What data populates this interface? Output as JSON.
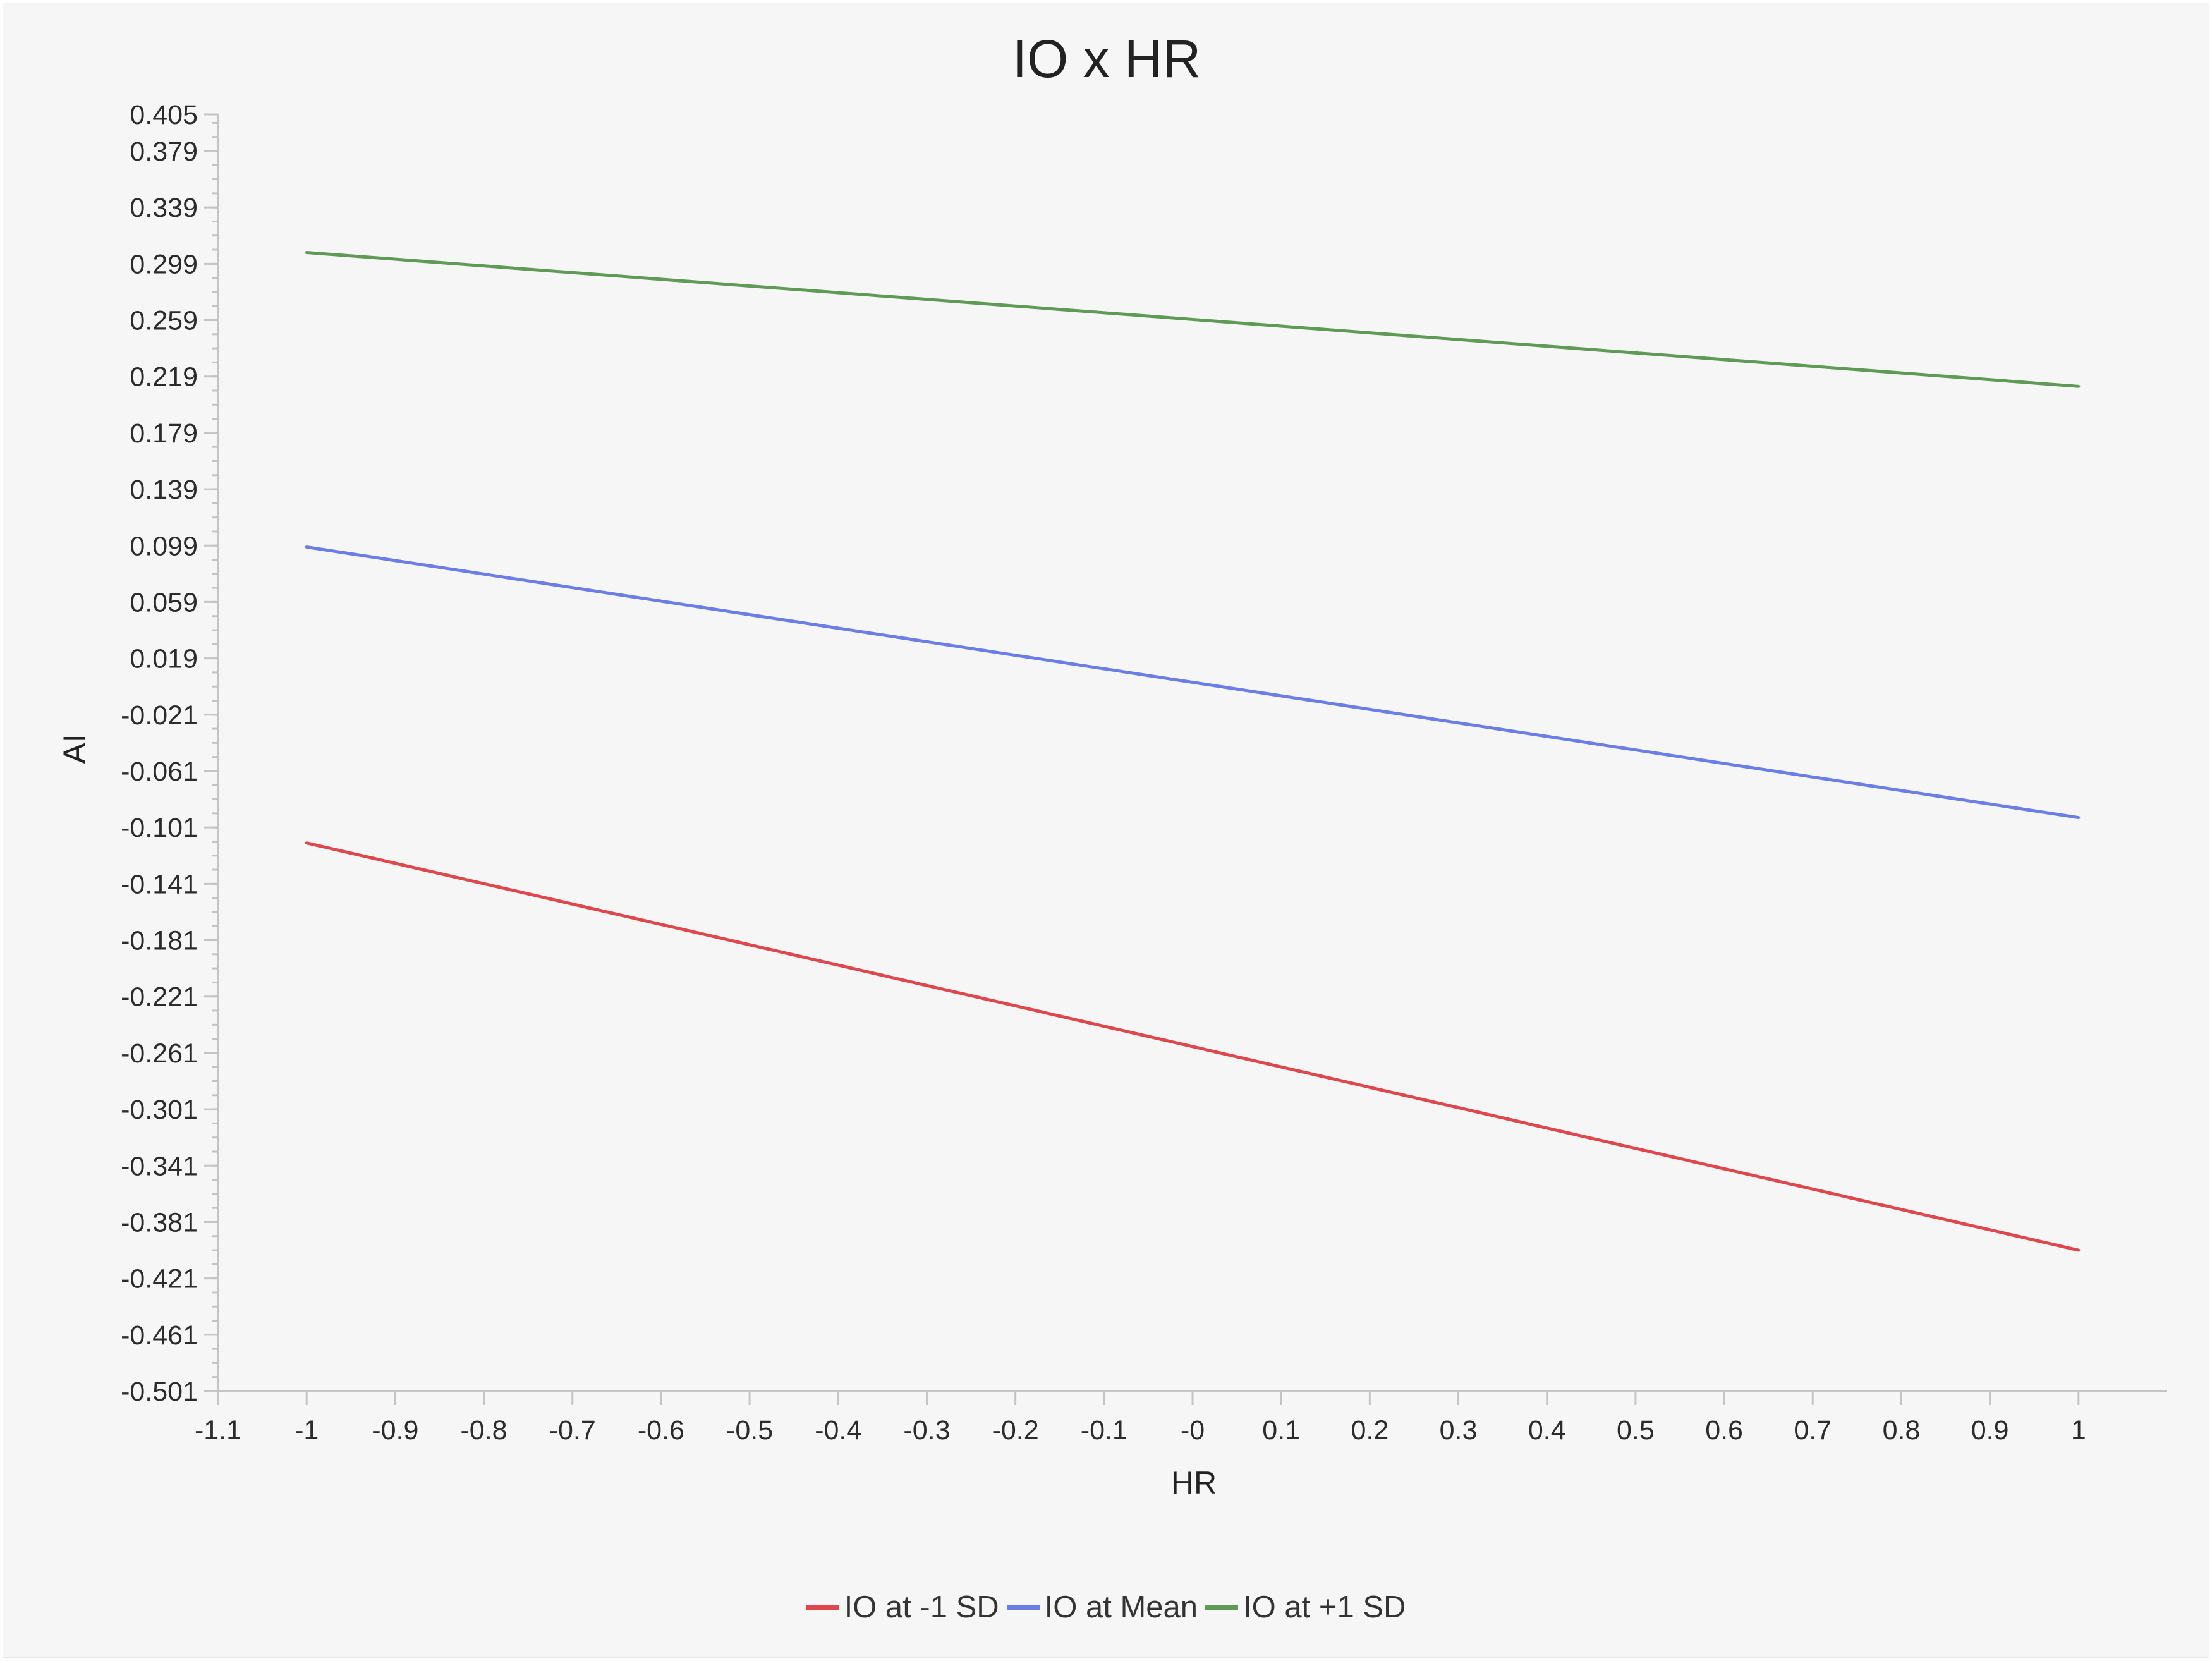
{
  "chart_data": {
    "type": "line",
    "title": "IO x HR",
    "xlabel": "HR",
    "ylabel": "AI",
    "xlim": [
      -1.1,
      1.1
    ],
    "ylim": [
      -0.501,
      0.405
    ],
    "x_ticks": [
      "-1.1",
      "-1",
      "-0.9",
      "-0.8",
      "-0.7",
      "-0.6",
      "-0.5",
      "-0.4",
      "-0.3",
      "-0.2",
      "-0.1",
      "-0",
      "0.1",
      "0.2",
      "0.3",
      "0.4",
      "0.5",
      "0.6",
      "0.7",
      "0.8",
      "0.9",
      "1"
    ],
    "y_ticks": [
      "0.405",
      "0.379",
      "0.339",
      "0.299",
      "0.259",
      "0.219",
      "0.179",
      "0.139",
      "0.099",
      "0.059",
      "0.019",
      "-0.021",
      "-0.061",
      "-0.101",
      "-0.141",
      "-0.181",
      "-0.221",
      "-0.261",
      "-0.301",
      "-0.341",
      "-0.381",
      "-0.421",
      "-0.461",
      "-0.501"
    ],
    "grid": false,
    "legend_position": "bottom",
    "series": [
      {
        "name": "IO at -1 SD",
        "color": "#e0474c",
        "x": [
          -1,
          1
        ],
        "y": [
          -0.112,
          -0.401
        ]
      },
      {
        "name": "IO at Mean",
        "color": "#6b7ee8",
        "x": [
          -1,
          1
        ],
        "y": [
          0.098,
          -0.094
        ]
      },
      {
        "name": "IO at +1 SD",
        "color": "#5f9a56",
        "x": [
          -1,
          1
        ],
        "y": [
          0.307,
          0.212
        ]
      }
    ]
  }
}
